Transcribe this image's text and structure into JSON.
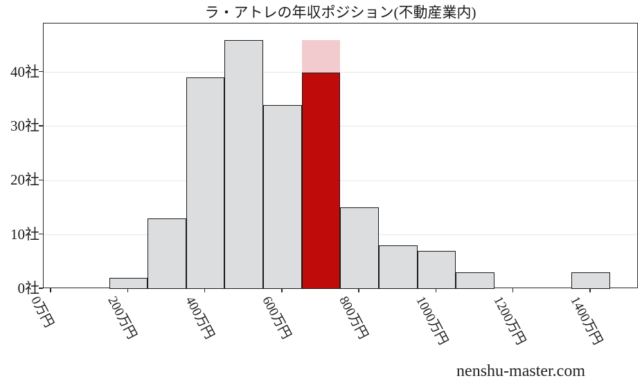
{
  "header": {
    "title": "ラ・アトレの年収ポジション(不動産業内)"
  },
  "watermark": {
    "text": "nenshu-master.com"
  },
  "chart_data": {
    "type": "bar",
    "subtype": "histogram",
    "title": "ラ・アトレの年収ポジション(不動産業内)",
    "xlabel": "",
    "ylabel": "",
    "x_unit": "万円",
    "y_unit": "社",
    "bin_width": 100,
    "bin_centers": [
      200,
      300,
      400,
      500,
      600,
      700,
      800,
      900,
      1000,
      1100,
      1200,
      1300,
      1400
    ],
    "values": [
      2,
      13,
      39,
      46,
      34,
      40,
      15,
      8,
      7,
      3,
      0,
      0,
      3
    ],
    "highlight": {
      "bin_center": 700,
      "value": 40,
      "overlay_to": 46
    },
    "x_ticks": [
      {
        "value": 0,
        "label": "0万円"
      },
      {
        "value": 200,
        "label": "200万円"
      },
      {
        "value": 400,
        "label": "400万円"
      },
      {
        "value": 600,
        "label": "600万円"
      },
      {
        "value": 800,
        "label": "800万円"
      },
      {
        "value": 1000,
        "label": "1000万円"
      },
      {
        "value": 1200,
        "label": "1200万円"
      },
      {
        "value": 1400,
        "label": "1400万円"
      }
    ],
    "y_ticks": [
      {
        "value": 0,
        "label": "0社"
      },
      {
        "value": 10,
        "label": "10社"
      },
      {
        "value": 20,
        "label": "20社"
      },
      {
        "value": 30,
        "label": "30社"
      },
      {
        "value": 40,
        "label": "40社"
      }
    ],
    "xlim": [
      -20,
      1524
    ],
    "ylim": [
      0,
      49
    ],
    "grid": "horizontal",
    "legend": "none",
    "colors": {
      "bar": "#dcdddf",
      "bar_border": "#1a1a1a",
      "highlight": "#c00b0b",
      "highlight_overlay": "#f1cbcd",
      "grid": "#e7e7e7",
      "axis": "#262626",
      "text": "#1a1a1a"
    }
  }
}
